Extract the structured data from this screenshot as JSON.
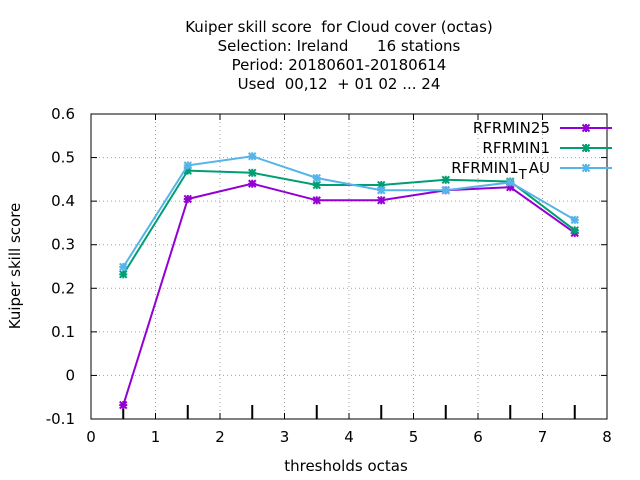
{
  "chart_data": {
    "type": "line",
    "title_lines": [
      "Kuiper skill score  for Cloud cover (octas)",
      "Selection: Ireland      16 stations",
      "Period: 20180601-20180614",
      "Used  00,12  + 01 02 ... 24"
    ],
    "xlabel": "thresholds octas",
    "ylabel": "Kuiper skill score",
    "xlim": [
      0,
      8
    ],
    "ylim": [
      -0.1,
      0.6
    ],
    "xticks": [
      0,
      1,
      2,
      3,
      4,
      5,
      6,
      7,
      8
    ],
    "yticks": [
      -0.1,
      0,
      0.1,
      0.2,
      0.3,
      0.4,
      0.5,
      0.6
    ],
    "xtick_labels": [
      "0",
      "1",
      "2",
      "3",
      "4",
      "5",
      "6",
      "7",
      "8"
    ],
    "ytick_labels": [
      "-0.1",
      "0",
      "0.1",
      "0.2",
      "0.3",
      "0.4",
      "0.5",
      "0.6"
    ],
    "grid": true,
    "legend_position": "top-right",
    "x": [
      0.5,
      1.5,
      2.5,
      3.5,
      4.5,
      5.5,
      6.5,
      7.5
    ],
    "series": [
      {
        "name": "RFRMIN25",
        "name_main": "RFRMIN25",
        "name_sub": "",
        "name_tail": "",
        "color": "#9400d3",
        "values": [
          -0.068,
          0.405,
          0.44,
          0.402,
          0.402,
          0.425,
          0.432,
          0.327
        ]
      },
      {
        "name": "RFRMIN1",
        "name_main": "RFRMIN1",
        "name_sub": "",
        "name_tail": "",
        "color": "#009e73",
        "values": [
          0.232,
          0.47,
          0.465,
          0.437,
          0.437,
          0.449,
          0.445,
          0.333
        ]
      },
      {
        "name": "RFRMIN1_T AU",
        "name_main": "RFRMIN1",
        "name_sub": "T",
        "name_tail": "AU",
        "color": "#56b4e9",
        "values": [
          0.249,
          0.482,
          0.503,
          0.453,
          0.425,
          0.425,
          0.443,
          0.357
        ]
      }
    ]
  }
}
